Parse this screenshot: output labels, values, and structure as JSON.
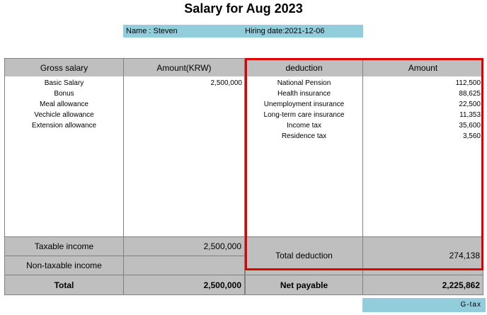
{
  "title": "Salary for Aug 2023",
  "info": {
    "name": "Name : Steven",
    "hiring_date": "Hiring date:2021-12-06"
  },
  "headers": {
    "gross_salary": "Gross salary",
    "amount_krw": "Amount(KRW)",
    "deduction": "deduction",
    "amount": "Amount"
  },
  "earnings": {
    "items": [
      "Basic Salary",
      "Bonus",
      "Meal allowance",
      "Vechicle allowance",
      "Extension allowance"
    ],
    "amounts": [
      "2,500,000",
      "",
      "",
      "",
      ""
    ]
  },
  "deductions": {
    "items": [
      "National Pension",
      "Health insurance",
      "Unemployment insurance",
      "Long-term care insurance",
      "Income tax",
      "Residence tax"
    ],
    "amounts": [
      "112,500",
      "88,625",
      "22,500",
      "11,353",
      "35,600",
      "3,560"
    ]
  },
  "summary": {
    "taxable_income_label": "Taxable income",
    "taxable_income_value": "2,500,000",
    "non_taxable_income_label": "Non-taxable income",
    "non_taxable_income_value": "",
    "total_deduction_label": "Total deduction",
    "total_deduction_value": "274,138",
    "total_label": "Total",
    "total_value": "2,500,000",
    "net_payable_label": "Net payable",
    "net_payable_value": "2,225,862"
  },
  "footer": {
    "tag": "G-tax"
  },
  "colors": {
    "header_grey": "#bfbfbf",
    "info_blue": "#92cddc",
    "highlight_red": "#e00000"
  }
}
